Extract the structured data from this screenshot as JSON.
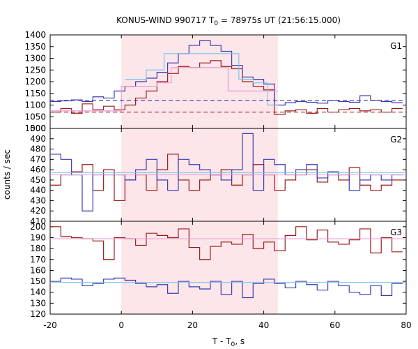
{
  "chart_data": {
    "type": "line",
    "title": "KONUS-WIND 990717 T",
    "title_sub": "0",
    "title_rest": " = 78975s UT (21:56:15.000)",
    "xlabel": "T - T",
    "xlabel_sub": "0",
    "xlabel_rest": ", s",
    "ylabel": "counts / sec",
    "xlim": [
      -20,
      80
    ],
    "x_ticks": [
      "-20",
      "0",
      "20",
      "40",
      "60",
      "80"
    ],
    "shaded_interval": [
      0,
      44
    ],
    "shade_color": "#fde6ea",
    "series_colors": {
      "dark_red": "#9b1b1b",
      "blue": "#3a3ab0",
      "light_blue": "#7ec3ea",
      "pink": "#e89ad0"
    },
    "panels": [
      {
        "name": "G1",
        "ylim": [
          1000,
          1400
        ],
        "y_ticks": [
          "1000",
          "1050",
          "1100",
          "1150",
          "1200",
          "1250",
          "1300",
          "1350",
          "1400"
        ],
        "bin_edges": [
          -20,
          -17,
          -14,
          -11,
          -8,
          -5,
          -2,
          1,
          4,
          7,
          10,
          13,
          16,
          19,
          22,
          25,
          28,
          31,
          34,
          37,
          40,
          43,
          46,
          49,
          52,
          55,
          58,
          61,
          64,
          67,
          70,
          73,
          76,
          79
        ],
        "series": [
          {
            "color": "dark_red",
            "style": "step",
            "values": [
              1070,
              1085,
              1065,
              1105,
              1080,
              1095,
              1080,
              1100,
              1130,
              1160,
              1200,
              1235,
              1265,
              1260,
              1280,
              1290,
              1265,
              1255,
              1200,
              1180,
              1165,
              1060,
              1075,
              1080,
              1065,
              1085,
              1070,
              1080,
              1085,
              1075,
              1080,
              1070,
              1085
            ]
          },
          {
            "color": "blue",
            "style": "step",
            "values": [
              1115,
              1118,
              1122,
              1115,
              1135,
              1130,
              1160,
              1180,
              1200,
              1215,
              1240,
              1280,
              1320,
              1355,
              1375,
              1355,
              1330,
              1270,
              1220,
              1210,
              1190,
              1100,
              1110,
              1115,
              1112,
              1108,
              1120,
              1115,
              1112,
              1140,
              1120,
              1115,
              1110
            ]
          },
          {
            "color": "light_blue",
            "style": "segments",
            "segments": [
              [
                1,
                7,
                1210
              ],
              [
                7,
                12,
                1250
              ],
              [
                12,
                33,
                1320
              ],
              [
                33,
                37,
                1210
              ],
              [
                37,
                41,
                1195
              ],
              [
                41,
                44,
                1100
              ]
            ]
          },
          {
            "color": "pink",
            "style": "segments",
            "segments": [
              [
                -20,
                0,
                1075
              ],
              [
                0,
                10,
                1180
              ],
              [
                10,
                14,
                1195
              ],
              [
                14,
                30,
                1260
              ],
              [
                30,
                44,
                1160
              ]
            ]
          },
          {
            "color": "blue",
            "style": "dashed",
            "values": [
              1120
            ]
          },
          {
            "color": "dark_red",
            "style": "dashed",
            "values": [
              1070
            ]
          }
        ]
      },
      {
        "name": "G2",
        "ylim": [
          410,
          500
        ],
        "y_ticks": [
          "410",
          "420",
          "430",
          "440",
          "450",
          "460",
          "470",
          "480",
          "490",
          "500"
        ],
        "bin_edges": [
          -20,
          -17,
          -14,
          -11,
          -8,
          -5,
          -2,
          1,
          4,
          7,
          10,
          13,
          16,
          19,
          22,
          25,
          28,
          31,
          34,
          37,
          40,
          43,
          46,
          49,
          52,
          55,
          58,
          61,
          64,
          67,
          70,
          73,
          76,
          79
        ],
        "series": [
          {
            "color": "dark_red",
            "style": "step",
            "values": [
              445,
              455,
              458,
              465,
              440,
              460,
              430,
              450,
              455,
              440,
              460,
              475,
              450,
              440,
              450,
              455,
              460,
              445,
              455,
              465,
              455,
              440,
              450,
              455,
              460,
              448,
              455,
              450,
              462,
              445,
              440,
              445,
              450
            ]
          },
          {
            "color": "blue",
            "style": "step",
            "values": [
              475,
              470,
              455,
              420,
              455,
              455,
              455,
              450,
              460,
              470,
              450,
              440,
              470,
              465,
              460,
              455,
              450,
              460,
              495,
              440,
              470,
              465,
              455,
              460,
              465,
              452,
              458,
              455,
              440,
              450,
              455,
              450,
              455
            ]
          },
          {
            "color": "light_blue",
            "style": "flat",
            "values": [
              457
            ]
          },
          {
            "color": "pink",
            "style": "flat",
            "values": [
              455
            ]
          }
        ]
      },
      {
        "name": "G3",
        "ylim": [
          120,
          205
        ],
        "y_ticks": [
          "120",
          "130",
          "140",
          "150",
          "160",
          "170",
          "180",
          "190",
          "200"
        ],
        "bin_edges": [
          -20,
          -17,
          -14,
          -11,
          -8,
          -5,
          -2,
          1,
          4,
          7,
          10,
          13,
          16,
          19,
          22,
          25,
          28,
          31,
          34,
          37,
          40,
          43,
          46,
          49,
          52,
          55,
          58,
          61,
          64,
          67,
          70,
          73,
          76,
          79
        ],
        "series": [
          {
            "color": "dark_red",
            "style": "step",
            "values": [
              200,
              191,
              190,
              189,
              187,
              170,
              190,
              189,
              183,
              194,
              192,
              190,
              198,
              181,
              170,
              182,
              186,
              184,
              193,
              180,
              186,
              178,
              192,
              200,
              188,
              197,
              186,
              184,
              188,
              198,
              176,
              190,
              177
            ]
          },
          {
            "color": "blue",
            "style": "step",
            "values": [
              150,
              153,
              152,
              146,
              148,
              152,
              153,
              151,
              148,
              145,
              147,
              139,
              150,
              145,
              143,
              150,
              138,
              150,
              135,
              148,
              152,
              148,
              144,
              150,
              147,
              142,
              150,
              146,
              140,
              138,
              146,
              137,
              148
            ]
          },
          {
            "color": "light_blue",
            "style": "flat",
            "values": [
              149
            ]
          },
          {
            "color": "pink",
            "style": "flat",
            "values": [
              189
            ]
          }
        ]
      }
    ]
  }
}
